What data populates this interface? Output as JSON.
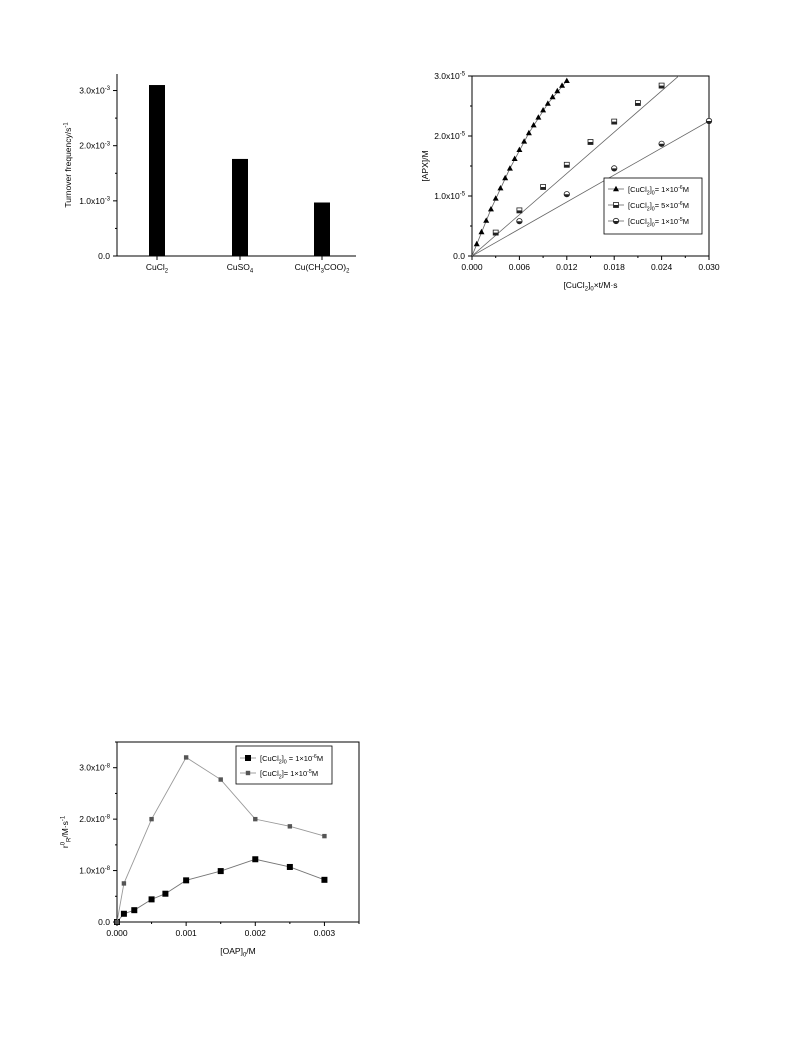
{
  "chart_data": [
    {
      "type": "bar",
      "ylabel": "Turnover frequency/s",
      "ylabel_sup": "-1",
      "ylim": [
        0,
        0.0033
      ],
      "categories": [
        "CuCl2",
        "CuSO4",
        "Cu(CH3COO)2"
      ],
      "category_labels": [
        [
          [
            "CuCl",
            "n"
          ],
          [
            "2",
            "sub"
          ]
        ],
        [
          [
            "CuSO",
            "n"
          ],
          [
            "4",
            "sub"
          ]
        ],
        [
          [
            "Cu(CH",
            "n"
          ],
          [
            "3",
            "sub"
          ],
          [
            "COO)",
            "n"
          ],
          [
            "2",
            "sub"
          ]
        ]
      ],
      "values": [
        0.0031,
        0.00176,
        0.00097
      ],
      "yticks": [
        0,
        0.001,
        0.002,
        0.003
      ],
      "ytick_labels": [
        [
          [
            "0.0",
            "n"
          ]
        ],
        [
          [
            "1.0x10",
            "n"
          ],
          [
            "-3",
            "sup"
          ]
        ],
        [
          [
            "2.0x10",
            "n"
          ],
          [
            "-3",
            "sup"
          ]
        ],
        [
          [
            "3.0x10",
            "n"
          ],
          [
            "-3",
            "sup"
          ]
        ]
      ],
      "bar_color": "#000000"
    },
    {
      "type": "scatter",
      "xlabel": [
        [
          "[CuCl",
          "n"
        ],
        [
          "2",
          "sub"
        ],
        [
          "]",
          "n"
        ],
        [
          "0",
          "sub"
        ],
        [
          "×t/M·s",
          "n"
        ]
      ],
      "ylabel": "[APX]/M",
      "xlim": [
        0,
        0.03
      ],
      "ylim": [
        0,
        3e-05
      ],
      "xticks": [
        0,
        0.006,
        0.012,
        0.018,
        0.024,
        0.03
      ],
      "xtick_labels": [
        "0.000",
        "0.006",
        "0.012",
        "0.018",
        "0.024",
        "0.030"
      ],
      "yticks": [
        0,
        1e-05,
        2e-05,
        3e-05
      ],
      "ytick_labels": [
        [
          [
            "0.0",
            "n"
          ]
        ],
        [
          [
            "1.0x10",
            "n"
          ],
          [
            "-5",
            "sup"
          ]
        ],
        [
          [
            "2.0x10",
            "n"
          ],
          [
            "-5",
            "sup"
          ]
        ],
        [
          [
            "3.0x10",
            "n"
          ],
          [
            "-5",
            "sup"
          ]
        ]
      ],
      "legend_position": "middle-right",
      "series": [
        {
          "legend": [
            [
              "[CuCl",
              "n"
            ],
            [
              "2",
              "sub"
            ],
            [
              "]",
              "n"
            ],
            [
              "0",
              "sub"
            ],
            [
              "= 1×10",
              "n"
            ],
            [
              "-6",
              "sup"
            ],
            [
              "M",
              "n"
            ]
          ],
          "marker": "triangle",
          "x": [
            0.0006,
            0.0012,
            0.0018,
            0.0024,
            0.003,
            0.0036,
            0.0042,
            0.0048,
            0.0054,
            0.006,
            0.0066,
            0.0072,
            0.0078,
            0.0084,
            0.009,
            0.0096,
            0.0102,
            0.0108,
            0.0114,
            0.012
          ],
          "y": [
            2e-06,
            4e-06,
            5.9e-06,
            7.8e-06,
            9.6e-06,
            1.13e-05,
            1.3e-05,
            1.46e-05,
            1.62e-05,
            1.77e-05,
            1.91e-05,
            2.05e-05,
            2.18e-05,
            2.31e-05,
            2.43e-05,
            2.54e-05,
            2.65e-05,
            2.75e-05,
            2.84e-05,
            2.92e-05
          ],
          "fit_x": [
            0,
            0.0024,
            0.0048,
            0.0072,
            0.0096,
            0.012
          ],
          "fit_y": [
            0,
            7.8e-06,
            1.46e-05,
            2.05e-05,
            2.54e-05,
            2.92e-05
          ]
        },
        {
          "legend": [
            [
              "[CuCl",
              "n"
            ],
            [
              "2",
              "sub"
            ],
            [
              "]",
              "n"
            ],
            [
              "0",
              "sub"
            ],
            [
              "= 5×10",
              "n"
            ],
            [
              "-6",
              "sup"
            ],
            [
              "M",
              "n"
            ]
          ],
          "marker": "square-half",
          "x": [
            0.003,
            0.006,
            0.009,
            0.012,
            0.015,
            0.018,
            0.021,
            0.024
          ],
          "y": [
            3.9e-06,
            7.6e-06,
            1.15e-05,
            1.52e-05,
            1.9e-05,
            2.24e-05,
            2.55e-05,
            2.84e-05
          ],
          "fit_x": [
            0,
            0.03
          ],
          "fit_y": [
            0,
            3.44e-05
          ]
        },
        {
          "legend": [
            [
              "[CuCl",
              "n"
            ],
            [
              "2",
              "sub"
            ],
            [
              "]",
              "n"
            ],
            [
              "0",
              "sub"
            ],
            [
              "= 1×10",
              "n"
            ],
            [
              "-5",
              "sup"
            ],
            [
              "M",
              "n"
            ]
          ],
          "marker": "circle-half",
          "x": [
            0.006,
            0.012,
            0.018,
            0.024,
            0.03
          ],
          "y": [
            5.8e-06,
            1.03e-05,
            1.46e-05,
            1.87e-05,
            2.25e-05
          ],
          "fit_x": [
            0,
            0.03
          ],
          "fit_y": [
            0,
            2.25e-05
          ]
        }
      ]
    },
    {
      "type": "line",
      "xlabel": [
        [
          "[OAP]",
          "n"
        ],
        [
          "0",
          "sub"
        ],
        [
          "/M",
          "n"
        ]
      ],
      "ylabel": [
        [
          "r",
          "n"
        ],
        [
          "0",
          "sup"
        ],
        [
          "R",
          "sub"
        ],
        [
          "/M·s",
          "n"
        ],
        [
          "-1",
          "sup"
        ]
      ],
      "xlim": [
        0,
        0.0035
      ],
      "ylim": [
        0,
        3.5e-08
      ],
      "xticks": [
        0,
        0.001,
        0.002,
        0.003
      ],
      "xtick_labels": [
        "0.000",
        "0.001",
        "0.002",
        "0.003"
      ],
      "yticks": [
        0,
        1e-08,
        2e-08,
        3e-08
      ],
      "ytick_labels": [
        [
          [
            "0.0",
            "n"
          ]
        ],
        [
          [
            "1.0x10",
            "n"
          ],
          [
            "-8",
            "sup"
          ]
        ],
        [
          [
            "2.0x10",
            "n"
          ],
          [
            "-8",
            "sup"
          ]
        ],
        [
          [
            "3.0x10",
            "n"
          ],
          [
            "-8",
            "sup"
          ]
        ]
      ],
      "legend_position": "top-right",
      "series": [
        {
          "legend": [
            [
              "[CuCl",
              "n"
            ],
            [
              "2",
              "sub"
            ],
            [
              "]",
              "n"
            ],
            [
              "0",
              "sub"
            ],
            [
              " = 1×10",
              "n"
            ],
            [
              "-6",
              "sup"
            ],
            [
              "M",
              "n"
            ]
          ],
          "marker": "square-filled",
          "x": [
            0,
            0.0001,
            0.00025,
            0.0005,
            0.0007,
            0.001,
            0.0015,
            0.002,
            0.0025,
            0.003
          ],
          "y": [
            0,
            1.6e-09,
            2.3e-09,
            4.4e-09,
            5.5e-09,
            8.1e-09,
            9.9e-09,
            1.22e-08,
            1.07e-08,
            8.2e-09
          ]
        },
        {
          "legend": [
            [
              "[CuCl",
              "n"
            ],
            [
              "2",
              "sub"
            ],
            [
              "]= 1×10",
              "n"
            ],
            [
              "-5",
              "sup"
            ],
            [
              "M",
              "n"
            ]
          ],
          "marker": "square-small",
          "x": [
            0,
            0.0001,
            0.0005,
            0.001,
            0.0015,
            0.002,
            0.0025,
            0.003
          ],
          "y": [
            0,
            7.5e-09,
            2e-08,
            3.2e-08,
            2.77e-08,
            2e-08,
            1.86e-08,
            1.67e-08
          ]
        }
      ]
    }
  ]
}
